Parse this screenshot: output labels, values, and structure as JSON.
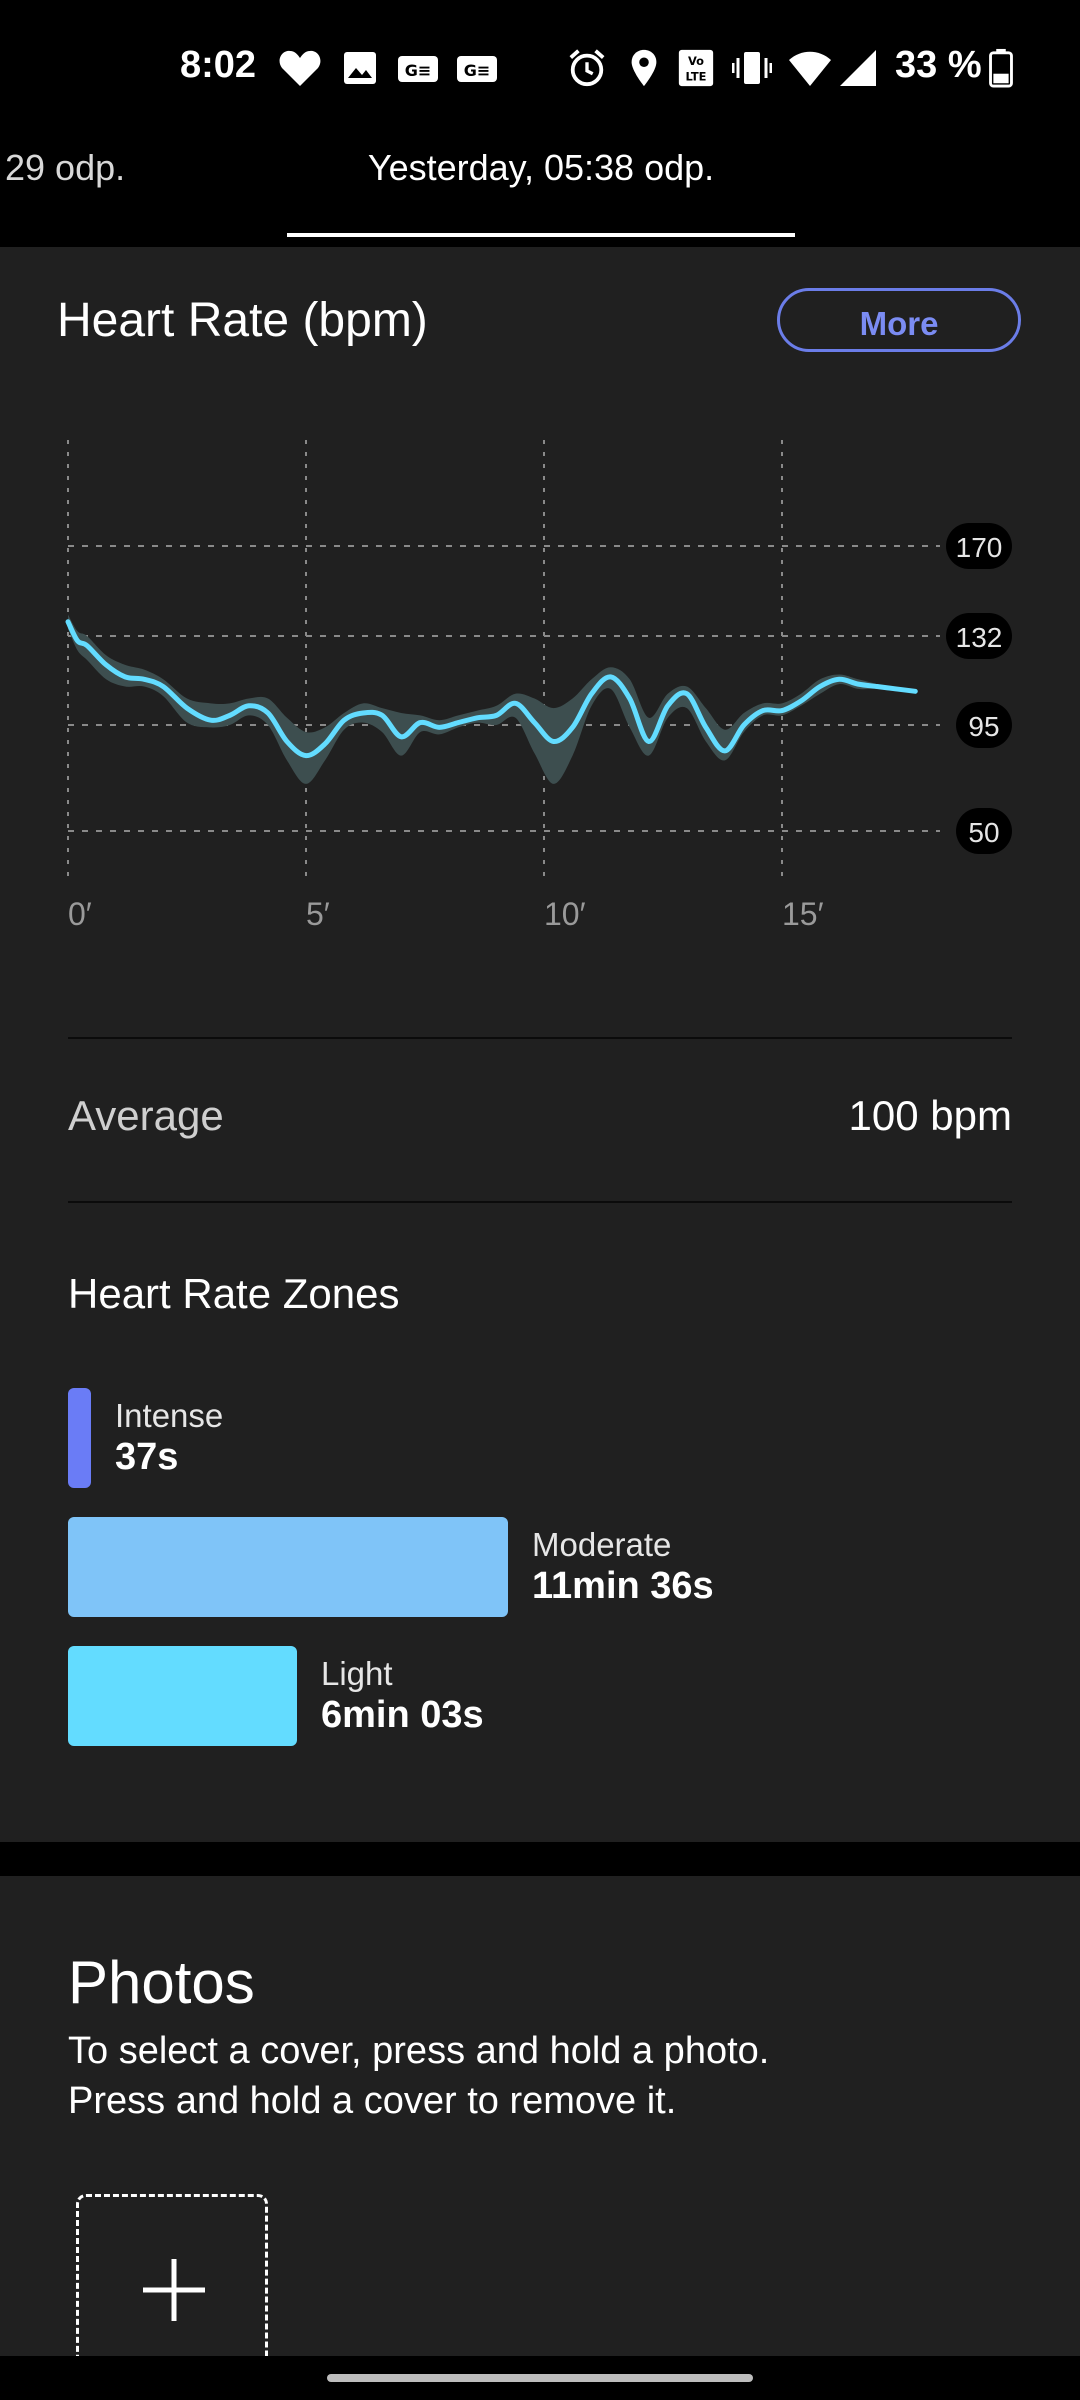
{
  "status_bar": {
    "time": "8:02",
    "battery": "33 %",
    "icons": [
      "heart-icon",
      "image-icon",
      "ge-icon",
      "ge-icon",
      "alarm-icon",
      "location-icon",
      "volte-icon",
      "vibrate-icon",
      "wifi-icon",
      "signal-icon",
      "battery-icon"
    ]
  },
  "tabs": {
    "previous": "29 odp.",
    "active": "Yesterday, 05:38 odp."
  },
  "heart_rate": {
    "title": "Heart Rate (bpm)",
    "more_label": "More",
    "average_label": "Average",
    "average_value": "100 bpm"
  },
  "zones": {
    "title": "Heart Rate Zones",
    "items": [
      {
        "label": "Intense",
        "value": "37s",
        "seconds": 37,
        "color": "#6a7cf6"
      },
      {
        "label": "Moderate",
        "value": "11min 36s",
        "seconds": 696,
        "color": "#7fc4f8"
      },
      {
        "label": "Light",
        "value": "6min 03s",
        "seconds": 363,
        "color": "#63dcff"
      }
    ]
  },
  "photos": {
    "title": "Photos",
    "help_line1": "To select a cover, press and hold a photo.",
    "help_line2": "Press and hold a cover to remove it."
  },
  "colors": {
    "accent": "#7b8cf3",
    "line": "#63dcff",
    "band": "#3d4e4f",
    "card": "#202020"
  },
  "chart_data": {
    "type": "line",
    "x_unit": "min",
    "x_ticks": [
      0,
      5,
      10,
      15
    ],
    "x_tick_labels": [
      "0′",
      "5′",
      "10′",
      "15′"
    ],
    "y_ticks": [
      50,
      95,
      132,
      170
    ],
    "y_tick_labels": [
      "50",
      "95",
      "132",
      "170"
    ],
    "xlim": [
      0,
      20
    ],
    "ylim": [
      30,
      210
    ],
    "grid": true,
    "series": [
      {
        "x": [
          0,
          0.2,
          0.4,
          0.8,
          1.2,
          1.6,
          2.0,
          2.5,
          3.0,
          3.4,
          3.8,
          4.2,
          4.6,
          5.0,
          5.4,
          5.8,
          6.2,
          6.6,
          7.0,
          7.4,
          7.8,
          8.2,
          8.6,
          9.0,
          9.4,
          9.8,
          10.2,
          10.6,
          11.0,
          11.4,
          11.8,
          12.2,
          12.6,
          13.0,
          13.4,
          13.8,
          14.2,
          14.6,
          15.0,
          15.4,
          15.8,
          16.2,
          16.6,
          17.0,
          17.4,
          17.8
        ],
        "y": [
          138,
          130,
          128,
          120,
          115,
          114,
          111,
          102,
          97,
          99,
          103,
          100,
          88,
          82,
          87,
          97,
          100,
          99,
          90,
          96,
          94,
          96,
          98,
          99,
          104,
          96,
          88,
          94,
          108,
          115,
          106,
          88,
          103,
          108,
          94,
          84,
          95,
          101,
          101,
          105,
          111,
          114,
          112,
          111,
          110,
          109
        ],
        "band_low": [
          135,
          126,
          122,
          114,
          111,
          111,
          107,
          96,
          94,
          95,
          99,
          95,
          80,
          70,
          80,
          93,
          96,
          92,
          82,
          92,
          91,
          94,
          96,
          95,
          98,
          83,
          70,
          82,
          103,
          110,
          94,
          82,
          98,
          102,
          88,
          80,
          92,
          99,
          99,
          103,
          108,
          112,
          110,
          110,
          109,
          109
        ],
        "band_high": [
          141,
          134,
          132,
          124,
          120,
          118,
          114,
          106,
          104,
          104,
          106,
          106,
          98,
          92,
          94,
          100,
          104,
          102,
          100,
          99,
          97,
          99,
          101,
          103,
          108,
          106,
          102,
          106,
          114,
          119,
          114,
          98,
          108,
          111,
          102,
          93,
          100,
          104,
          104,
          108,
          114,
          116,
          114,
          112,
          110,
          109
        ]
      }
    ]
  }
}
